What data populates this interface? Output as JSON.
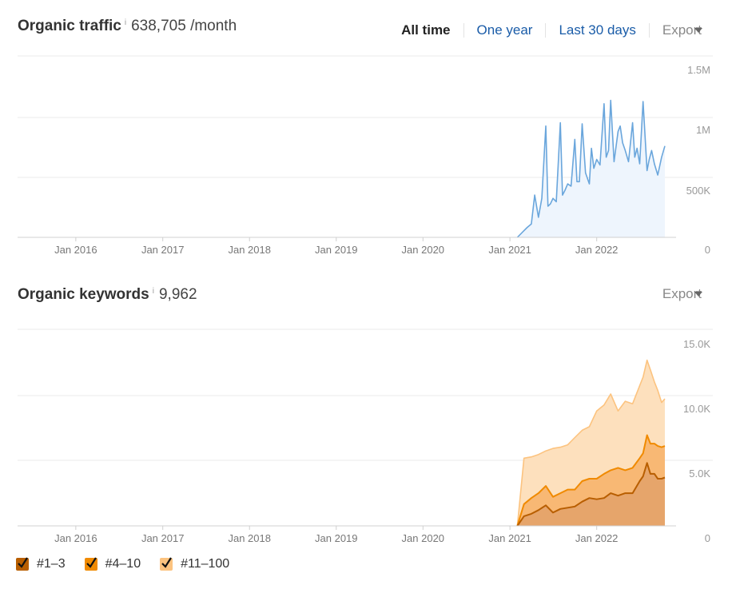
{
  "traffic": {
    "title": "Organic traffic",
    "info": "i",
    "value": "638,705 /month",
    "tabs": [
      {
        "label": "All time",
        "active": true
      },
      {
        "label": "One year",
        "active": false
      },
      {
        "label": "Last 30 days",
        "active": false
      }
    ],
    "export_label": "Export"
  },
  "keywords": {
    "title": "Organic keywords",
    "info": "i",
    "value": "9,962",
    "export_label": "Export"
  },
  "legend": [
    {
      "label": "#1–3",
      "color": "#b85e00"
    },
    {
      "label": "#4–10",
      "color": "#f08a00"
    },
    {
      "label": "#11–100",
      "color": "#fcc37f"
    }
  ],
  "chart_data": [
    {
      "type": "area",
      "title": "Organic traffic",
      "x_ticks": [
        "Jan 2016",
        "Jan 2017",
        "Jan 2018",
        "Jan 2019",
        "Jan 2020",
        "Jan 2021",
        "Jan 2022"
      ],
      "y_ticks": [
        "1.5M",
        "1M",
        "500K",
        "0"
      ],
      "ylim": [
        0,
        1500000
      ],
      "xlim": [
        "2015-05-01",
        "2022-12-01"
      ],
      "grid": true,
      "color": "#6aa6dc",
      "fill": "#eef5fd",
      "series": [
        {
          "x": [
            "2021-02-01",
            "2021-03-01",
            "2021-03-15",
            "2021-04-01",
            "2021-04-15",
            "2021-05-01",
            "2021-05-15",
            "2021-06-01",
            "2021-06-10",
            "2021-06-20",
            "2021-07-01",
            "2021-07-15",
            "2021-08-01",
            "2021-08-10",
            "2021-08-20",
            "2021-09-01",
            "2021-09-15",
            "2021-10-01",
            "2021-10-10",
            "2021-10-20",
            "2021-11-01",
            "2021-11-15",
            "2021-12-01",
            "2021-12-10",
            "2021-12-20",
            "2022-01-01",
            "2022-01-15",
            "2022-02-01",
            "2022-02-10",
            "2022-02-20",
            "2022-03-01",
            "2022-03-15",
            "2022-04-01",
            "2022-04-10",
            "2022-04-20",
            "2022-05-01",
            "2022-05-15",
            "2022-06-01",
            "2022-06-10",
            "2022-06-20",
            "2022-07-01",
            "2022-07-15",
            "2022-08-01",
            "2022-08-10",
            "2022-08-20",
            "2022-09-01",
            "2022-09-15",
            "2022-10-01",
            "2022-10-15"
          ],
          "values": [
            0,
            60000,
            90000,
            120000,
            380000,
            180000,
            350000,
            1000000,
            280000,
            300000,
            350000,
            320000,
            1030000,
            380000,
            420000,
            480000,
            460000,
            880000,
            500000,
            500000,
            1020000,
            580000,
            480000,
            800000,
            620000,
            700000,
            650000,
            1200000,
            720000,
            780000,
            1230000,
            680000,
            950000,
            1000000,
            850000,
            780000,
            680000,
            1030000,
            720000,
            800000,
            660000,
            1220000,
            600000,
            700000,
            780000,
            660000,
            560000,
            720000,
            820000
          ]
        }
      ]
    },
    {
      "type": "area",
      "title": "Organic keywords",
      "x_ticks": [
        "Jan 2016",
        "Jan 2017",
        "Jan 2018",
        "Jan 2019",
        "Jan 2020",
        "Jan 2021",
        "Jan 2022"
      ],
      "y_ticks": [
        "15.0K",
        "10.0K",
        "5.0K",
        "0"
      ],
      "ylim": [
        0,
        15000
      ],
      "xlim": [
        "2015-05-01",
        "2022-12-01"
      ],
      "grid": true,
      "x": [
        "2021-02-01",
        "2021-03-01",
        "2021-04-01",
        "2021-05-01",
        "2021-06-01",
        "2021-07-01",
        "2021-08-01",
        "2021-09-01",
        "2021-10-01",
        "2021-11-01",
        "2021-12-01",
        "2022-01-01",
        "2022-02-01",
        "2022-03-01",
        "2022-04-01",
        "2022-05-01",
        "2022-06-01",
        "2022-07-01",
        "2022-07-15",
        "2022-08-01",
        "2022-08-15",
        "2022-09-01",
        "2022-09-15",
        "2022-10-01",
        "2022-10-15"
      ],
      "series": [
        {
          "name": "#11–100",
          "color": "#fcc37f",
          "values": [
            0,
            5600,
            5700,
            5900,
            6200,
            6400,
            6500,
            6700,
            7300,
            7900,
            8200,
            9500,
            10000,
            10900,
            9500,
            10300,
            10100,
            11600,
            12300,
            13700,
            12900,
            11900,
            11200,
            10200,
            10500
          ]
        },
        {
          "name": "#4–10",
          "color": "#f08a00",
          "values": [
            0,
            1800,
            2300,
            2700,
            3300,
            2400,
            2700,
            3000,
            3000,
            3700,
            3900,
            3900,
            4300,
            4600,
            4800,
            4600,
            4800,
            5600,
            6000,
            7500,
            6800,
            6800,
            6600,
            6500,
            6600
          ]
        },
        {
          "name": "#1–3",
          "color": "#b85e00",
          "values": [
            0,
            800,
            1000,
            1300,
            1700,
            1100,
            1400,
            1500,
            1600,
            2000,
            2300,
            2200,
            2300,
            2700,
            2500,
            2700,
            2700,
            3700,
            4100,
            5200,
            4300,
            4300,
            3900,
            3900,
            4000
          ]
        }
      ]
    }
  ]
}
